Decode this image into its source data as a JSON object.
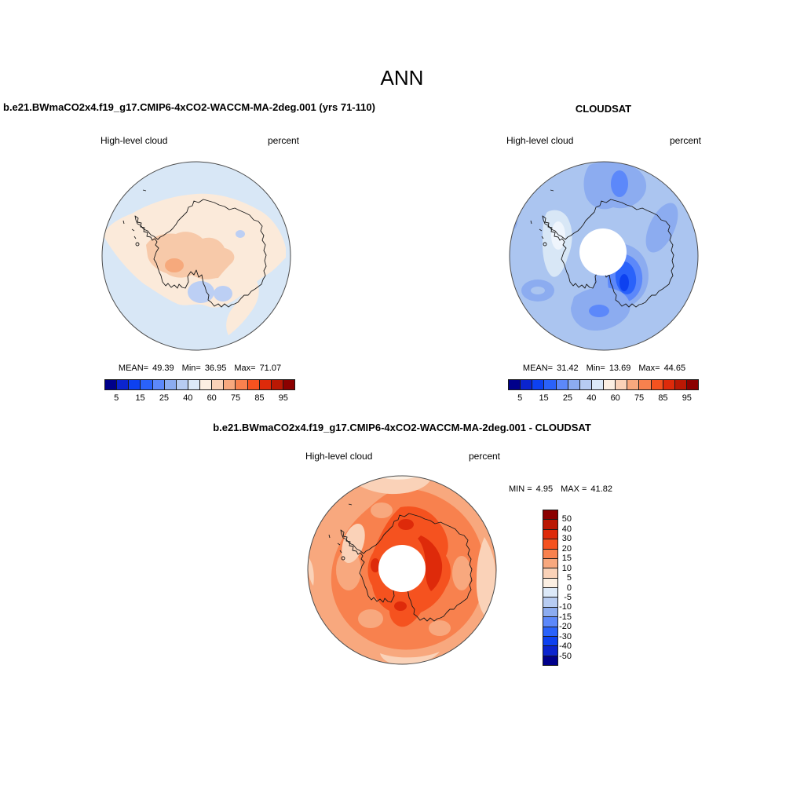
{
  "page": {
    "title": "ANN"
  },
  "colors": {
    "background": "#ffffff",
    "coastline": "#1a1a1a",
    "circle_outline": "#4d4d4d",
    "pole_gap_fill": "#ffffff",
    "palette_blue_red": [
      "#00008B",
      "#0B24CE",
      "#0D41F0",
      "#2A62FA",
      "#5C88FA",
      "#8CACF0",
      "#B7CCF2",
      "#DCE9F8",
      "#FCEFE2",
      "#FAD2B8",
      "#F8A87E",
      "#F8814E",
      "#F5521F",
      "#DE2A0A",
      "#BA1804",
      "#8B0000"
    ]
  },
  "panels": {
    "model": {
      "title": "b.e21.BWmaCO2x4.f19_g17.CMIP6-4xCO2-WACCM-MA-2deg.001 (yrs 71-110)",
      "field_label": "High-level cloud",
      "units_label": "percent",
      "stats": {
        "mean_label": "MEAN=",
        "mean": "49.39",
        "min_label": "Min=",
        "min": "36.95",
        "max_label": "Max=",
        "max": "71.07"
      },
      "colorbar_ticks": [
        "5",
        "15",
        "25",
        "40",
        "60",
        "75",
        "85",
        "95"
      ]
    },
    "obs": {
      "title": "CLOUDSAT",
      "field_label": "High-level cloud",
      "units_label": "percent",
      "stats": {
        "mean_label": "MEAN=",
        "mean": "31.42",
        "min_label": "Min=",
        "min": "13.69",
        "max_label": "Max=",
        "max": "44.65"
      },
      "colorbar_ticks": [
        "5",
        "15",
        "25",
        "40",
        "60",
        "75",
        "85",
        "95"
      ]
    },
    "diff": {
      "title": "b.e21.BWmaCO2x4.f19_g17.CMIP6-4xCO2-WACCM-MA-2deg.001 - CLOUDSAT",
      "field_label": "High-level cloud",
      "units_label": "percent",
      "stats": {
        "min_label": "MIN =",
        "min": "4.95",
        "max_label": "MAX =",
        "max": "41.82"
      },
      "colorbar_labels": [
        "50",
        "40",
        "30",
        "20",
        "15",
        "10",
        "5",
        "0",
        "-5",
        "-10",
        "-15",
        "-20",
        "-30",
        "-40",
        "-50"
      ]
    }
  },
  "chart_data": [
    {
      "type": "heatmap",
      "subtype": "filled-contour south-polar stereographic map of Antarctica",
      "title": "b.e21.BWmaCO2x4.f19_g17.CMIP6-4xCO2-WACCM-MA-2deg.001 (yrs 71-110)",
      "variable": "High-level cloud",
      "units": "percent",
      "contour_levels": [
        5,
        10,
        15,
        20,
        25,
        30,
        40,
        50,
        60,
        70,
        75,
        80,
        85,
        90,
        95
      ],
      "colorbar_tick_labels": [
        5,
        15,
        25,
        40,
        60,
        75,
        85,
        95
      ],
      "stats": {
        "mean": 49.39,
        "min": 36.95,
        "max": 71.07
      },
      "legend_position": "horizontal colorbar below map",
      "colormap": "16-class blue-to-red",
      "notes": "mostly 40-50% (pale blue) ocean, 50-70% (cream/peach) ring over continent, small 70-75% maximum over West Antarctica, 30-40% minima near Ross Sea"
    },
    {
      "type": "heatmap",
      "subtype": "filled-contour south-polar stereographic map of Antarctica",
      "title": "CLOUDSAT",
      "variable": "High-level cloud",
      "units": "percent",
      "contour_levels": [
        5,
        10,
        15,
        20,
        25,
        30,
        40,
        50,
        60,
        70,
        75,
        80,
        85,
        90,
        95
      ],
      "colorbar_tick_labels": [
        5,
        15,
        25,
        40,
        60,
        75,
        85,
        95
      ],
      "stats": {
        "mean": 31.42,
        "min": 13.69,
        "max": 44.65
      },
      "legend_position": "horizontal colorbar below map",
      "colormap": "16-class blue-to-red",
      "notes": "mostly 30-40% (medium blue), minima 10-25% (dark blue) east of pole and at 12 o'clock, maxima 40-45% (pale) near Antarctic Peninsula; white circular satellite data gap at pole"
    },
    {
      "type": "heatmap",
      "subtype": "filled-contour difference map (model minus observations)",
      "title": "b.e21.BWmaCO2x4.f19_g17.CMIP6-4xCO2-WACCM-MA-2deg.001 - CLOUDSAT",
      "variable": "High-level cloud",
      "units": "percent",
      "contour_levels": [
        -50,
        -40,
        -30,
        -20,
        -15,
        -10,
        -5,
        0,
        5,
        10,
        15,
        20,
        30,
        40,
        50
      ],
      "stats": {
        "min": 4.95,
        "max": 41.82
      },
      "legend_position": "vertical colorbar right of map, labels 50 to -50 top to bottom",
      "colormap": "16-class blue-to-red",
      "notes": "entire field positive: 5-15% (light orange) near rim, 15-30% (orange) ring, 30-40% (red) near pole hole; white circular data gap at pole"
    }
  ]
}
